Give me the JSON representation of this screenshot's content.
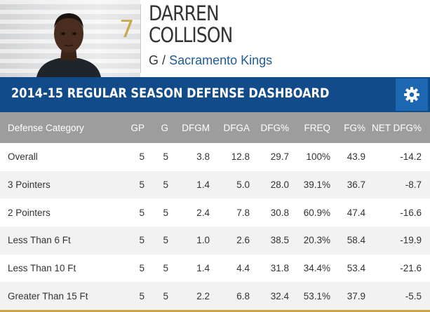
{
  "player": {
    "first_name": "DARREN",
    "last_name": "COLLISON",
    "number": "7",
    "position": "G",
    "separator": "/",
    "team": "Sacramento Kings"
  },
  "dashboard": {
    "title": "2014-15 REGULAR SEASON DEFENSE DASHBOARD",
    "settings_icon": "gear-icon"
  },
  "table": {
    "headers": [
      "Defense Category",
      "GP",
      "G",
      "DFGM",
      "DFGA",
      "DFG%",
      "FREQ",
      "FG%",
      "NET DFG%"
    ],
    "rows": [
      [
        "Overall",
        "5",
        "5",
        "3.8",
        "12.8",
        "29.7",
        "100%",
        "43.9",
        "-14.2"
      ],
      [
        "3 Pointers",
        "5",
        "5",
        "1.4",
        "5.0",
        "28.0",
        "39.1%",
        "36.7",
        "-8.7"
      ],
      [
        "2 Pointers",
        "5",
        "5",
        "2.4",
        "7.8",
        "30.8",
        "60.9%",
        "47.4",
        "-16.6"
      ],
      [
        "Less Than 6 Ft",
        "5",
        "5",
        "1.0",
        "2.6",
        "38.5",
        "20.3%",
        "58.4",
        "-19.9"
      ],
      [
        "Less Than 10 Ft",
        "5",
        "5",
        "1.4",
        "4.4",
        "31.8",
        "34.4%",
        "53.4",
        "-21.6"
      ],
      [
        "Greater Than 15 Ft",
        "5",
        "5",
        "2.2",
        "6.8",
        "32.4",
        "53.1%",
        "37.9",
        "-5.5"
      ]
    ]
  },
  "colors": {
    "header_blue": "#114b8a",
    "gear_blue": "#1d66b1",
    "table_header_gray": "#9d9d9d",
    "accent_gold": "#c9a84a",
    "link_blue": "#1d5c94"
  }
}
